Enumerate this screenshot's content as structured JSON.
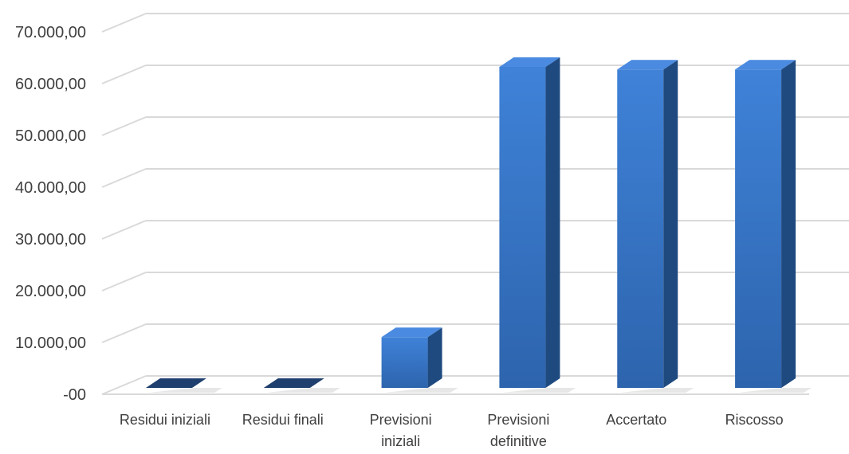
{
  "chart_data": {
    "type": "bar",
    "title": "",
    "xlabel": "",
    "ylabel": "",
    "categories": [
      [
        "Residui iniziali"
      ],
      [
        "Residui finali"
      ],
      [
        "Previsioni",
        "iniziali"
      ],
      [
        "Previsioni",
        "definitive"
      ],
      [
        "Accertato"
      ],
      [
        "Riscosso"
      ]
    ],
    "values": [
      0,
      0,
      9800,
      62000,
      61500,
      61500
    ],
    "ylim": [
      0,
      70000
    ],
    "y_ticks": [
      0,
      10000,
      20000,
      30000,
      40000,
      50000,
      60000,
      70000
    ],
    "y_tick_labels": [
      "-00",
      "10.000,00",
      "20.000,00",
      "30.000,00",
      "40.000,00",
      "50.000,00",
      "60.000,00",
      "70.000,00"
    ],
    "grid": true,
    "legend": "none",
    "style": "3d-column",
    "colors": {
      "bar_front": "#3a7bd0",
      "bar_side": "#1f4a80",
      "bar_top": "#4a8ae0",
      "grid": "#d9d9d9",
      "text": "#404040"
    }
  }
}
